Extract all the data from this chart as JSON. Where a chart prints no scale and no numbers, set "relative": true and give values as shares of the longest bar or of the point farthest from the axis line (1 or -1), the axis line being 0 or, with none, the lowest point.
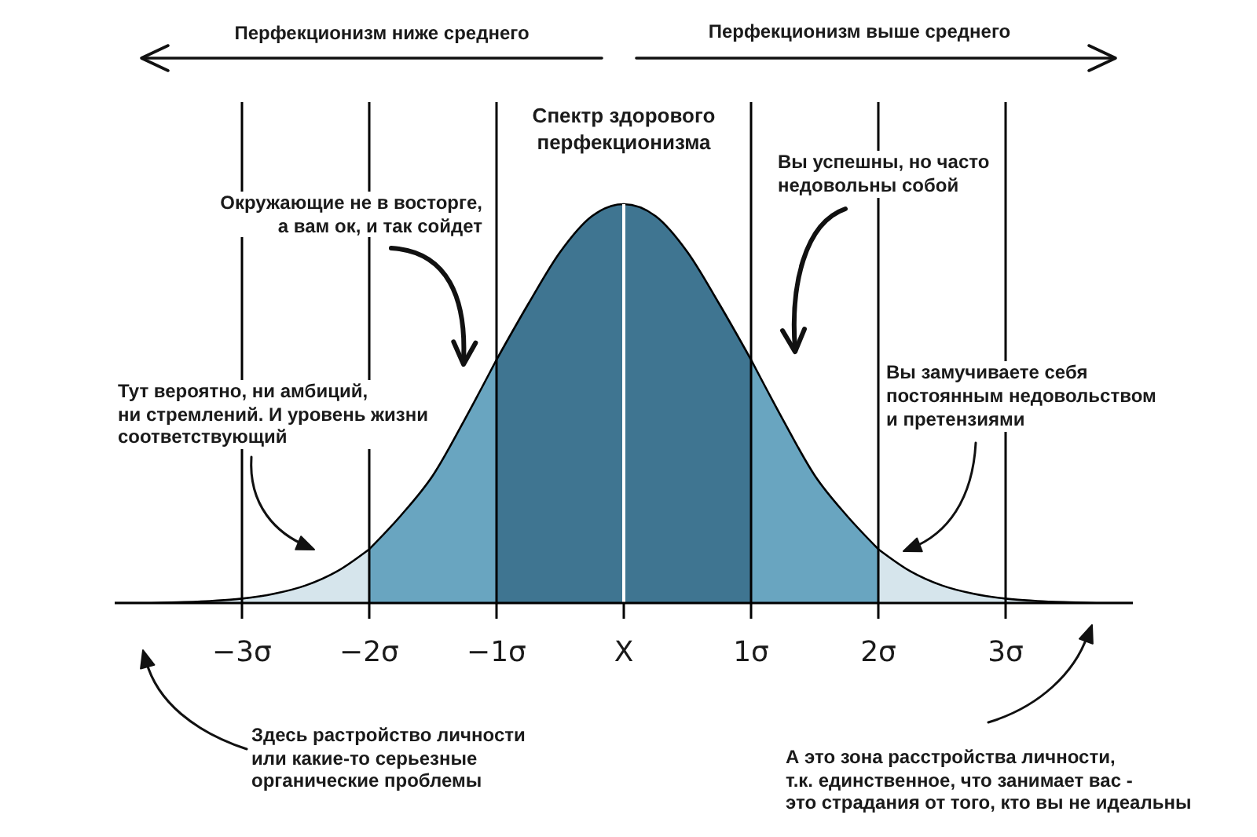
{
  "chart_data": {
    "type": "area",
    "relative": true,
    "x": [
      -4,
      -3.75,
      -3.5,
      -3.25,
      -3,
      -2.75,
      -2.5,
      -2.25,
      -2,
      -1.75,
      -1.5,
      -1.25,
      -1,
      -0.75,
      -0.5,
      -0.25,
      0,
      0.25,
      0.5,
      0.75,
      1,
      1.25,
      1.5,
      1.75,
      2,
      2.25,
      2.5,
      2.75,
      3,
      3.25,
      3.5,
      3.75,
      4
    ],
    "xlim": [
      -4,
      4
    ],
    "xticks": [
      {
        "value": -3,
        "label": "−3σ"
      },
      {
        "value": -2,
        "label": "−2σ"
      },
      {
        "value": -1,
        "label": "−1σ"
      },
      {
        "value": 0,
        "label": "X"
      },
      {
        "value": 1,
        "label": "1σ"
      },
      {
        "value": 2,
        "label": "2σ"
      },
      {
        "value": 3,
        "label": "3σ"
      }
    ],
    "series": [
      {
        "color": "#d6e5ec",
        "values": [
          0,
          0,
          0.002,
          0.005,
          0.011,
          0.023,
          0.044,
          0.08,
          0.135,
          null,
          null,
          null,
          null,
          null,
          null,
          null,
          null,
          null,
          null,
          null,
          null,
          null,
          null,
          null,
          0.135,
          0.08,
          0.044,
          0.023,
          0.011,
          0.005,
          0.002,
          0,
          0
        ]
      },
      {
        "color": "#69a5c0",
        "values": [
          null,
          null,
          null,
          null,
          null,
          null,
          null,
          null,
          0.135,
          0.22,
          0.32,
          0.46,
          0.61,
          null,
          null,
          null,
          null,
          null,
          null,
          null,
          0.61,
          0.46,
          0.32,
          0.22,
          0.135,
          null,
          null,
          null,
          null,
          null,
          null,
          null,
          null
        ]
      },
      {
        "color": "#3f7591",
        "values": [
          null,
          null,
          null,
          null,
          null,
          null,
          null,
          null,
          null,
          null,
          null,
          null,
          0.61,
          0.75,
          0.88,
          0.97,
          1,
          0.97,
          0.88,
          0.75,
          0.61,
          null,
          null,
          null,
          null,
          null,
          null,
          null,
          null,
          null,
          null,
          null,
          null
        ]
      }
    ],
    "ref_lines": [
      {
        "axis": "x",
        "value": -3,
        "color": "#000000"
      },
      {
        "axis": "x",
        "value": -2,
        "color": "#000000"
      },
      {
        "axis": "x",
        "value": -1,
        "color": "#000000"
      },
      {
        "axis": "x",
        "value": 0,
        "color": "#ffffff"
      },
      {
        "axis": "x",
        "value": 1,
        "color": "#000000"
      },
      {
        "axis": "x",
        "value": 2,
        "color": "#000000"
      },
      {
        "axis": "x",
        "value": 3,
        "color": "#000000"
      }
    ],
    "annotations": [
      "Перфекционизм ниже среднего",
      "Перфекционизм выше среднего",
      "Спектр здорового\nперфекционизма",
      "Окружающие не в восторге,\nа вам ок, и так сойдет",
      "Вы успешны, но часто\nнедовольны собой",
      "Тут вероятно, ни амбиций,\nни стремлений. И уровень жизни\nсоответствующий",
      "Вы замучиваете себя\nпостоянным недовольством\nи претензиями",
      "Здесь растройство личности\nили какие-то серьезные\nорганические проблемы",
      "А это зона расстройства личности,\nт.к. единственное, что занимает вас -\nэто страдания от того, кто вы не идеальны"
    ]
  }
}
